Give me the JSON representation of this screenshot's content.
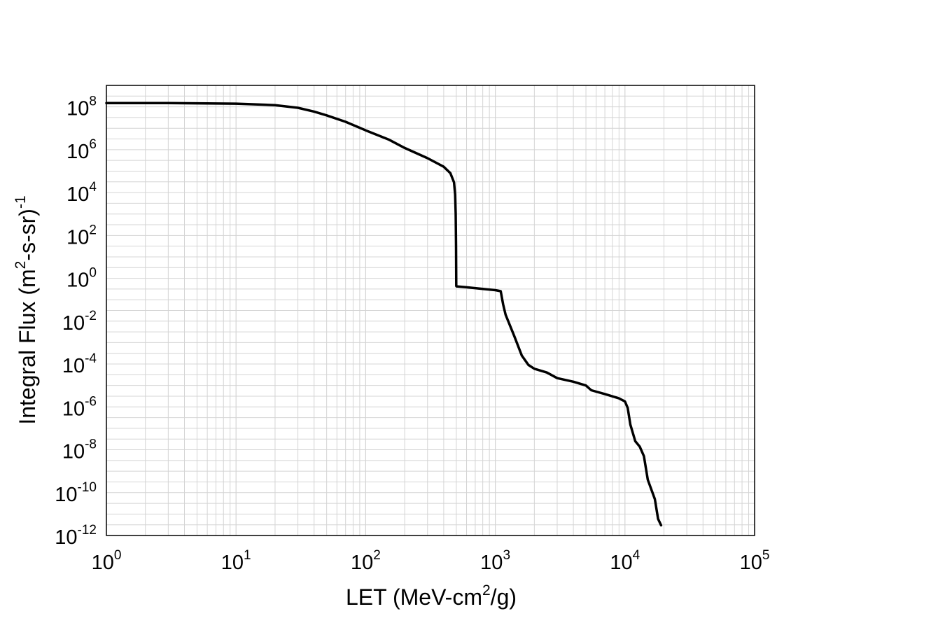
{
  "chart_data": {
    "type": "line",
    "title": "",
    "xlabel": {
      "prefix": "LET (MeV-cm",
      "sup": "2",
      "suffix": "/g)"
    },
    "ylabel": {
      "prefix": "Integral Flux (m",
      "sup": "2",
      "mid": "-s-sr)",
      "sup2": "-1"
    },
    "x_scale": "log",
    "y_scale": "log",
    "xlim": [
      1,
      100000
    ],
    "ylim": [
      1e-12,
      1000000000.0
    ],
    "grid": true,
    "legend": "none",
    "x_ticks": [
      {
        "base": "10",
        "exp": "0",
        "value": 1
      },
      {
        "base": "10",
        "exp": "1",
        "value": 10
      },
      {
        "base": "10",
        "exp": "2",
        "value": 100
      },
      {
        "base": "10",
        "exp": "3",
        "value": 1000
      },
      {
        "base": "10",
        "exp": "4",
        "value": 10000
      },
      {
        "base": "10",
        "exp": "5",
        "value": 100000
      }
    ],
    "y_ticks": [
      {
        "base": "10",
        "exp": "8",
        "value": 100000000.0
      },
      {
        "base": "10",
        "exp": "6",
        "value": 1000000.0
      },
      {
        "base": "10",
        "exp": "4",
        "value": 10000.0
      },
      {
        "base": "10",
        "exp": "2",
        "value": 100.0
      },
      {
        "base": "10",
        "exp": "0",
        "value": 1
      },
      {
        "base": "10",
        "exp": "-2",
        "value": 0.01
      },
      {
        "base": "10",
        "exp": "-4",
        "value": 0.0001
      },
      {
        "base": "10",
        "exp": "-6",
        "value": 1e-06
      },
      {
        "base": "10",
        "exp": "-8",
        "value": 1e-08
      },
      {
        "base": "10",
        "exp": "-10",
        "value": 1e-10
      },
      {
        "base": "10",
        "exp": "-12",
        "value": 1e-12
      }
    ],
    "series": [
      {
        "color": "#000000",
        "x": [
          1,
          3,
          10,
          20,
          30,
          40,
          50,
          70,
          100,
          150,
          200,
          300,
          400,
          450,
          480,
          490,
          495,
          498,
          500,
          500.5,
          502,
          600,
          800,
          1000,
          1100,
          1150,
          1200,
          1400,
          1600,
          1800,
          2000,
          2500,
          3000,
          4000,
          5000,
          5500,
          7000,
          9000,
          10000,
          10500,
          11000,
          12000,
          13000,
          14000,
          15000,
          17000,
          18000,
          19000
        ],
        "y": [
          150000000.0,
          150000000.0,
          140000000.0,
          120000000.0,
          90000000.0,
          60000000.0,
          40000000.0,
          20000000.0,
          8000000.0,
          3000000.0,
          1200000.0,
          400000.0,
          160000.0,
          80000.0,
          30000.0,
          8000,
          1000,
          30,
          0.45,
          0.43,
          0.42,
          0.38,
          0.32,
          0.28,
          0.25,
          0.06,
          0.02,
          0.002,
          0.00025,
          9e-05,
          6e-05,
          4e-05,
          2.2e-05,
          1.5e-05,
          1e-05,
          6e-06,
          4e-06,
          2.5e-06,
          1.8e-06,
          9e-07,
          1.5e-07,
          2.5e-08,
          1.4e-08,
          5e-09,
          4e-10,
          5e-11,
          6e-12,
          3e-12
        ]
      }
    ]
  }
}
